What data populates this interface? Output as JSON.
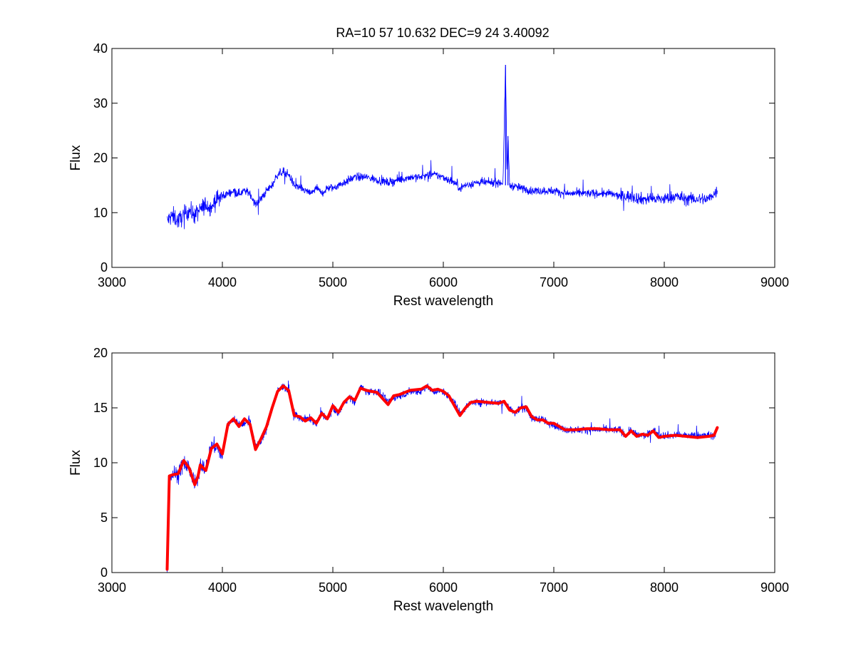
{
  "figure": {
    "title": "RA=10  57   10.632    DEC=9  24  3.40092",
    "background": "#ffffff"
  },
  "chart_data": [
    {
      "type": "line",
      "panel": "top",
      "xlabel": "Rest wavelength",
      "ylabel": "Flux",
      "xlim": [
        3000,
        9000
      ],
      "ylim": [
        0,
        40
      ],
      "xticks": [
        "3000",
        "4000",
        "5000",
        "6000",
        "7000",
        "8000",
        "9000"
      ],
      "yticks": [
        "0",
        "10",
        "20",
        "30",
        "40"
      ],
      "grid": false,
      "series": [
        {
          "color": "#0000ff",
          "style": "noisy-line",
          "x": [
            3500,
            3550,
            3600,
            3650,
            3700,
            3750,
            3800,
            3850,
            3900,
            3950,
            4000,
            4050,
            4100,
            4150,
            4200,
            4250,
            4300,
            4350,
            4400,
            4450,
            4500,
            4550,
            4600,
            4650,
            4700,
            4750,
            4800,
            4850,
            4900,
            4950,
            5000,
            5100,
            5200,
            5300,
            5400,
            5500,
            5600,
            5700,
            5800,
            5900,
            6000,
            6100,
            6150,
            6200,
            6300,
            6400,
            6500,
            6540,
            6563,
            6575,
            6585,
            6600,
            6700,
            6800,
            6900,
            7000,
            7100,
            7200,
            7300,
            7400,
            7500,
            7600,
            7700,
            7800,
            7900,
            8000,
            8100,
            8200,
            8300,
            8400,
            8480
          ],
          "y": [
            8.5,
            9.5,
            8.5,
            9.5,
            10.5,
            9.5,
            10.5,
            11.5,
            11,
            12.5,
            13,
            13.5,
            14,
            13.5,
            14,
            13.5,
            11.5,
            12.5,
            14,
            15,
            17,
            17.5,
            17,
            15,
            14.5,
            14,
            13.5,
            14.5,
            13.5,
            14.5,
            14.5,
            15.5,
            16.5,
            16.5,
            16,
            15.5,
            16,
            16.5,
            16.5,
            17,
            16.5,
            15.5,
            14.5,
            15,
            15.5,
            15.5,
            15.5,
            15.5,
            37,
            18,
            24,
            15,
            14.5,
            14,
            14,
            14,
            13.5,
            13.5,
            13.5,
            13.5,
            13.5,
            13,
            13,
            12.5,
            12.5,
            12.5,
            13,
            12.5,
            12.5,
            12.5,
            14
          ]
        }
      ]
    },
    {
      "type": "line",
      "panel": "bottom",
      "xlabel": "Rest wavelength",
      "ylabel": "Flux",
      "xlim": [
        3000,
        9000
      ],
      "ylim": [
        0,
        20
      ],
      "xticks": [
        "3000",
        "4000",
        "5000",
        "6000",
        "7000",
        "8000",
        "9000"
      ],
      "yticks": [
        "0",
        "5",
        "10",
        "15",
        "20"
      ],
      "grid": false,
      "series": [
        {
          "color": "#0000ff",
          "style": "noisy-line",
          "x": [
            3500,
            3520,
            3550,
            3600,
            3650,
            3700,
            3750,
            3780,
            3800,
            3850,
            3900,
            3950,
            4000,
            4050,
            4100,
            4150,
            4200,
            4250,
            4300,
            4350,
            4400,
            4450,
            4500,
            4550,
            4600,
            4650,
            4700,
            4750,
            4800,
            4850,
            4900,
            4950,
            5000,
            5050,
            5100,
            5150,
            5200,
            5250,
            5300,
            5400,
            5500,
            5550,
            5600,
            5700,
            5800,
            5850,
            5900,
            5950,
            6000,
            6050,
            6100,
            6150,
            6200,
            6250,
            6300,
            6400,
            6500,
            6550,
            6600,
            6650,
            6700,
            6750,
            6800,
            6850,
            6900,
            6950,
            7000,
            7100,
            7200,
            7300,
            7400,
            7500,
            7600,
            7650,
            7700,
            7750,
            7800,
            7850,
            7900,
            7950,
            8000,
            8100,
            8200,
            8300,
            8400,
            8450,
            8480
          ],
          "y": [
            0.3,
            8.5,
            9,
            9,
            10,
            9.5,
            8,
            8.5,
            10,
            9.5,
            11.5,
            11.5,
            10.5,
            13.5,
            14,
            13.5,
            13.5,
            14,
            11.5,
            12,
            13,
            15,
            16.5,
            17,
            16.5,
            14.5,
            14,
            14,
            14,
            13.5,
            14.5,
            14,
            15,
            14.5,
            15.5,
            16,
            15.5,
            17,
            16.5,
            16.5,
            15.5,
            16,
            16,
            16.5,
            16.5,
            17,
            16.5,
            16.5,
            16.5,
            16,
            15.5,
            14.5,
            15,
            15.5,
            15.5,
            15.5,
            15.5,
            15.5,
            15,
            14.5,
            15,
            15,
            14,
            14,
            14,
            13.5,
            13.5,
            13,
            13,
            13,
            13,
            13,
            13,
            12.5,
            13,
            12.5,
            12.5,
            12.5,
            13,
            12.5,
            12.5,
            12.5,
            12.5,
            12.5,
            12.5,
            12.5,
            13
          ]
        },
        {
          "color": "#ff0000",
          "style": "smooth-thick",
          "x": [
            3500,
            3520,
            3550,
            3600,
            3650,
            3700,
            3750,
            3780,
            3800,
            3850,
            3900,
            3950,
            4000,
            4050,
            4100,
            4150,
            4200,
            4250,
            4300,
            4350,
            4400,
            4450,
            4500,
            4550,
            4600,
            4650,
            4700,
            4750,
            4800,
            4850,
            4900,
            4950,
            5000,
            5050,
            5100,
            5150,
            5200,
            5250,
            5300,
            5400,
            5500,
            5550,
            5600,
            5700,
            5800,
            5850,
            5900,
            5950,
            6000,
            6050,
            6100,
            6150,
            6200,
            6250,
            6300,
            6400,
            6500,
            6550,
            6600,
            6650,
            6700,
            6750,
            6800,
            6850,
            6900,
            6950,
            7000,
            7100,
            7200,
            7300,
            7400,
            7500,
            7600,
            7650,
            7700,
            7750,
            7800,
            7850,
            7900,
            7950,
            8000,
            8100,
            8200,
            8300,
            8400,
            8450,
            8480
          ],
          "y": [
            0.3,
            8.8,
            8.9,
            9,
            10.2,
            9.5,
            8,
            8.8,
            9.8,
            9.3,
            11.3,
            11.7,
            10.8,
            13.5,
            14,
            13.3,
            14,
            13.5,
            11.2,
            12.2,
            13.3,
            15,
            16.5,
            17,
            16.6,
            14.3,
            14.2,
            13.8,
            14.1,
            13.6,
            14.5,
            14,
            15.2,
            14.6,
            15.5,
            16,
            15.7,
            16.8,
            16.6,
            16.4,
            15.3,
            16.1,
            16.2,
            16.6,
            16.7,
            17,
            16.6,
            16.7,
            16.5,
            16.1,
            15.2,
            14.3,
            15,
            15.5,
            15.6,
            15.5,
            15.4,
            15.6,
            14.8,
            14.6,
            15,
            15.1,
            14.2,
            13.9,
            13.9,
            13.6,
            13.6,
            13,
            13,
            13.1,
            13.1,
            13,
            13,
            12.4,
            12.9,
            12.4,
            12.6,
            12.5,
            12.9,
            12.3,
            12.4,
            12.5,
            12.4,
            12.3,
            12.4,
            12.5,
            13.2
          ]
        }
      ]
    }
  ]
}
